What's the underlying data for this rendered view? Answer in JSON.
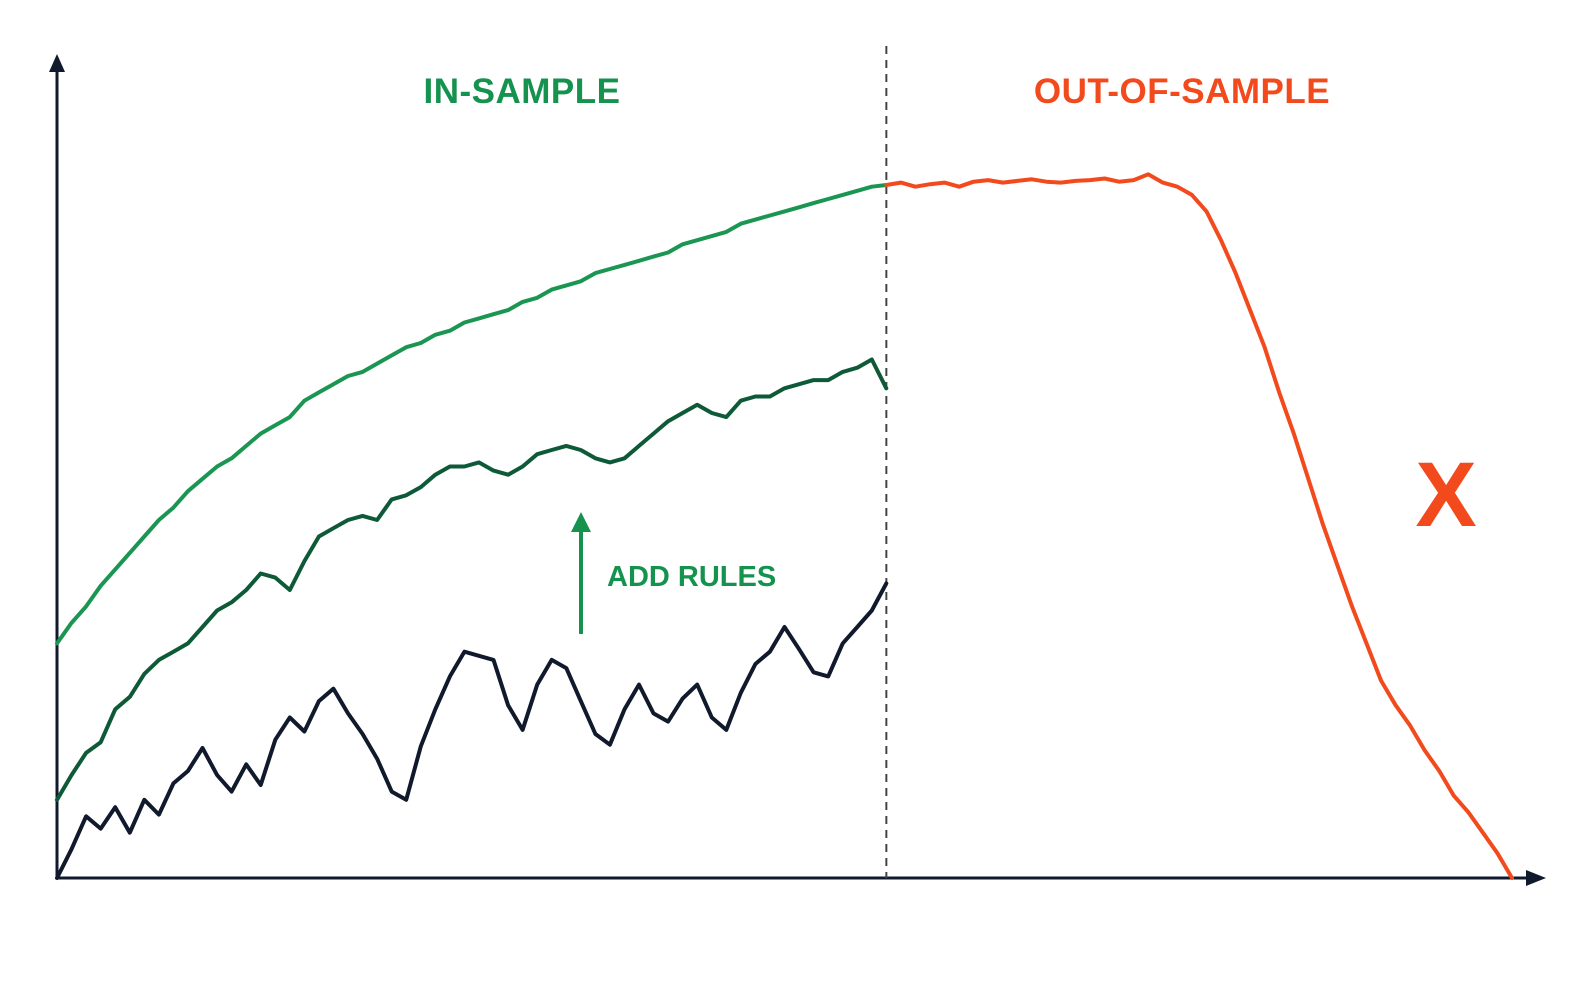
{
  "chart_data": {
    "type": "line",
    "title": "",
    "xlabel": "",
    "ylabel": "",
    "xlim": [
      0,
      100
    ],
    "ylim": [
      0,
      100
    ],
    "axis_ticks": false,
    "grid": false,
    "split_at_x": 57,
    "regions": [
      {
        "label": "IN-SAMPLE",
        "color": "#16924f"
      },
      {
        "label": "OUT-OF-SAMPLE",
        "color": "#f24a1c"
      }
    ],
    "annotations": {
      "arrow_label": "ADD RULES",
      "arrow_color": "#16924f",
      "fail_mark": "X",
      "fail_color": "#f24a1c"
    },
    "series": [
      {
        "color": "#101a2c",
        "x": [
          0,
          1,
          2,
          3,
          4,
          5,
          6,
          7,
          8,
          9,
          10,
          11,
          12,
          13,
          14,
          15,
          16,
          17,
          18,
          19,
          20,
          21,
          22,
          23,
          24,
          25,
          26,
          27,
          28,
          29,
          30,
          31,
          32,
          33,
          34,
          35,
          36,
          37,
          38,
          39,
          40,
          41,
          42,
          43,
          44,
          45,
          46,
          47,
          48,
          49,
          50,
          51,
          52,
          53,
          54,
          55,
          56,
          57
        ],
        "values": [
          0.0,
          3.5,
          7.5,
          6.0,
          8.6,
          5.5,
          9.5,
          7.7,
          11.5,
          13.0,
          15.8,
          12.5,
          10.5,
          13.8,
          11.3,
          16.8,
          19.5,
          17.8,
          21.5,
          23.0,
          20.0,
          17.5,
          14.5,
          10.5,
          9.5,
          16.0,
          20.5,
          24.5,
          27.5,
          27.0,
          26.5,
          21.0,
          18.0,
          23.5,
          26.5,
          25.5,
          21.5,
          17.5,
          16.2,
          20.5,
          23.5,
          20.0,
          19.0,
          21.8,
          23.5,
          19.5,
          18.0,
          22.5,
          26.0,
          27.5,
          30.5,
          27.8,
          25.0,
          24.5,
          28.5,
          30.5,
          32.5,
          35.8
        ]
      },
      {
        "color": "#0e5a38",
        "x": [
          0,
          1,
          2,
          3,
          4,
          5,
          6,
          7,
          8,
          9,
          10,
          11,
          12,
          13,
          14,
          15,
          16,
          17,
          18,
          19,
          20,
          21,
          22,
          23,
          24,
          25,
          26,
          27,
          28,
          29,
          30,
          31,
          32,
          33,
          34,
          35,
          36,
          37,
          38,
          39,
          40,
          41,
          42,
          43,
          44,
          45,
          46,
          47,
          48,
          49,
          50,
          51,
          52,
          53,
          54,
          55,
          56,
          57
        ],
        "values": [
          9.5,
          12.5,
          15.2,
          16.5,
          20.5,
          22.0,
          24.8,
          26.5,
          27.5,
          28.5,
          30.5,
          32.5,
          33.5,
          35.0,
          37.0,
          36.5,
          35.0,
          38.5,
          41.5,
          42.5,
          43.5,
          44.0,
          43.5,
          46.0,
          46.5,
          47.5,
          49.0,
          50.0,
          50.0,
          50.5,
          49.5,
          49.0,
          50.0,
          51.5,
          52.0,
          52.5,
          52.0,
          51.0,
          50.5,
          51.0,
          52.5,
          54.0,
          55.5,
          56.5,
          57.5,
          56.5,
          56.0,
          58.0,
          58.5,
          58.5,
          59.5,
          60.0,
          60.5,
          60.5,
          61.5,
          62.0,
          63.0,
          59.5
        ]
      },
      {
        "color": "#1b9652",
        "x": [
          0,
          1,
          2,
          3,
          4,
          5,
          6,
          7,
          8,
          9,
          10,
          11,
          12,
          13,
          14,
          15,
          16,
          17,
          18,
          19,
          20,
          21,
          22,
          23,
          24,
          25,
          26,
          27,
          28,
          29,
          30,
          31,
          32,
          33,
          34,
          35,
          36,
          37,
          38,
          39,
          40,
          41,
          42,
          43,
          44,
          45,
          46,
          47,
          48,
          49,
          50,
          51,
          52,
          53,
          54,
          55,
          56,
          57
        ],
        "values": [
          28.5,
          31.0,
          33.0,
          35.5,
          37.5,
          39.5,
          41.5,
          43.5,
          45.0,
          47.0,
          48.5,
          50.0,
          51.0,
          52.5,
          54.0,
          55.0,
          56.0,
          58.0,
          59.0,
          60.0,
          61.0,
          61.5,
          62.5,
          63.5,
          64.5,
          65.0,
          66.0,
          66.5,
          67.5,
          68.0,
          68.5,
          69.0,
          70.0,
          70.5,
          71.5,
          72.0,
          72.5,
          73.5,
          74.0,
          74.5,
          75.0,
          75.5,
          76.0,
          77.0,
          77.5,
          78.0,
          78.5,
          79.5,
          80.0,
          80.5,
          81.0,
          81.5,
          82.0,
          82.5,
          83.0,
          83.5,
          84.0,
          84.2
        ]
      },
      {
        "color": "#f24a1c",
        "x": [
          57,
          58,
          59,
          60,
          61,
          62,
          63,
          64,
          65,
          66,
          67,
          68,
          69,
          70,
          71,
          72,
          73,
          74,
          75,
          76,
          77,
          78,
          79,
          80,
          81,
          82,
          83,
          84,
          85,
          86,
          87,
          88,
          89,
          90,
          91,
          92,
          93,
          94,
          95,
          96,
          97,
          98,
          99,
          100
        ],
        "values": [
          84.2,
          84.5,
          84.0,
          84.3,
          84.5,
          84.0,
          84.6,
          84.8,
          84.5,
          84.7,
          84.9,
          84.6,
          84.5,
          84.7,
          84.8,
          85.0,
          84.6,
          84.8,
          85.5,
          84.5,
          84.0,
          83.0,
          81.0,
          77.5,
          73.5,
          69.0,
          64.5,
          59.0,
          54.0,
          48.5,
          43.0,
          38.0,
          33.0,
          28.5,
          24.0,
          21.0,
          18.5,
          15.5,
          13.0,
          10.0,
          8.0,
          5.5,
          3.0,
          0.0
        ]
      }
    ]
  }
}
